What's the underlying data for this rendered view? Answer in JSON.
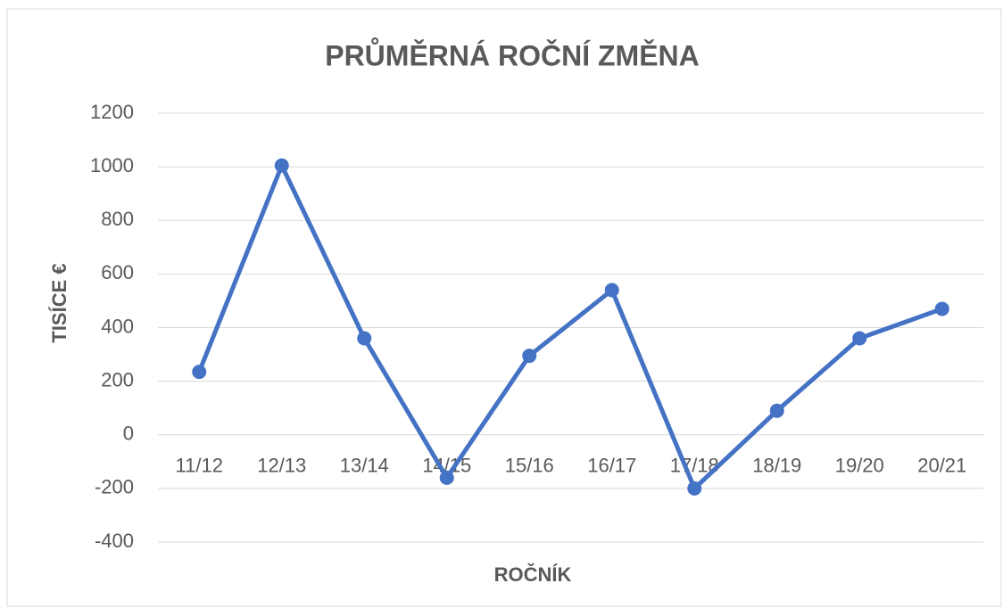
{
  "chart_data": {
    "type": "line",
    "title": "PRŮMĚRNÁ ROČNÍ ZMĚNA",
    "x_label": "ROČNÍK",
    "y_label": "TISÍCE €",
    "categories": [
      "11/12",
      "12/13",
      "13/14",
      "14/15",
      "15/16",
      "16/17",
      "17/18",
      "18/19",
      "19/20",
      "20/21"
    ],
    "series": [
      {
        "color": "#4472c4",
        "values": [
          235,
          1005,
          360,
          -160,
          295,
          540,
          -200,
          90,
          360,
          470
        ]
      }
    ],
    "ylim": [
      -400,
      1200
    ],
    "yticks": [
      -400,
      -200,
      0,
      200,
      400,
      600,
      800,
      1000,
      1200
    ],
    "grid": true
  }
}
